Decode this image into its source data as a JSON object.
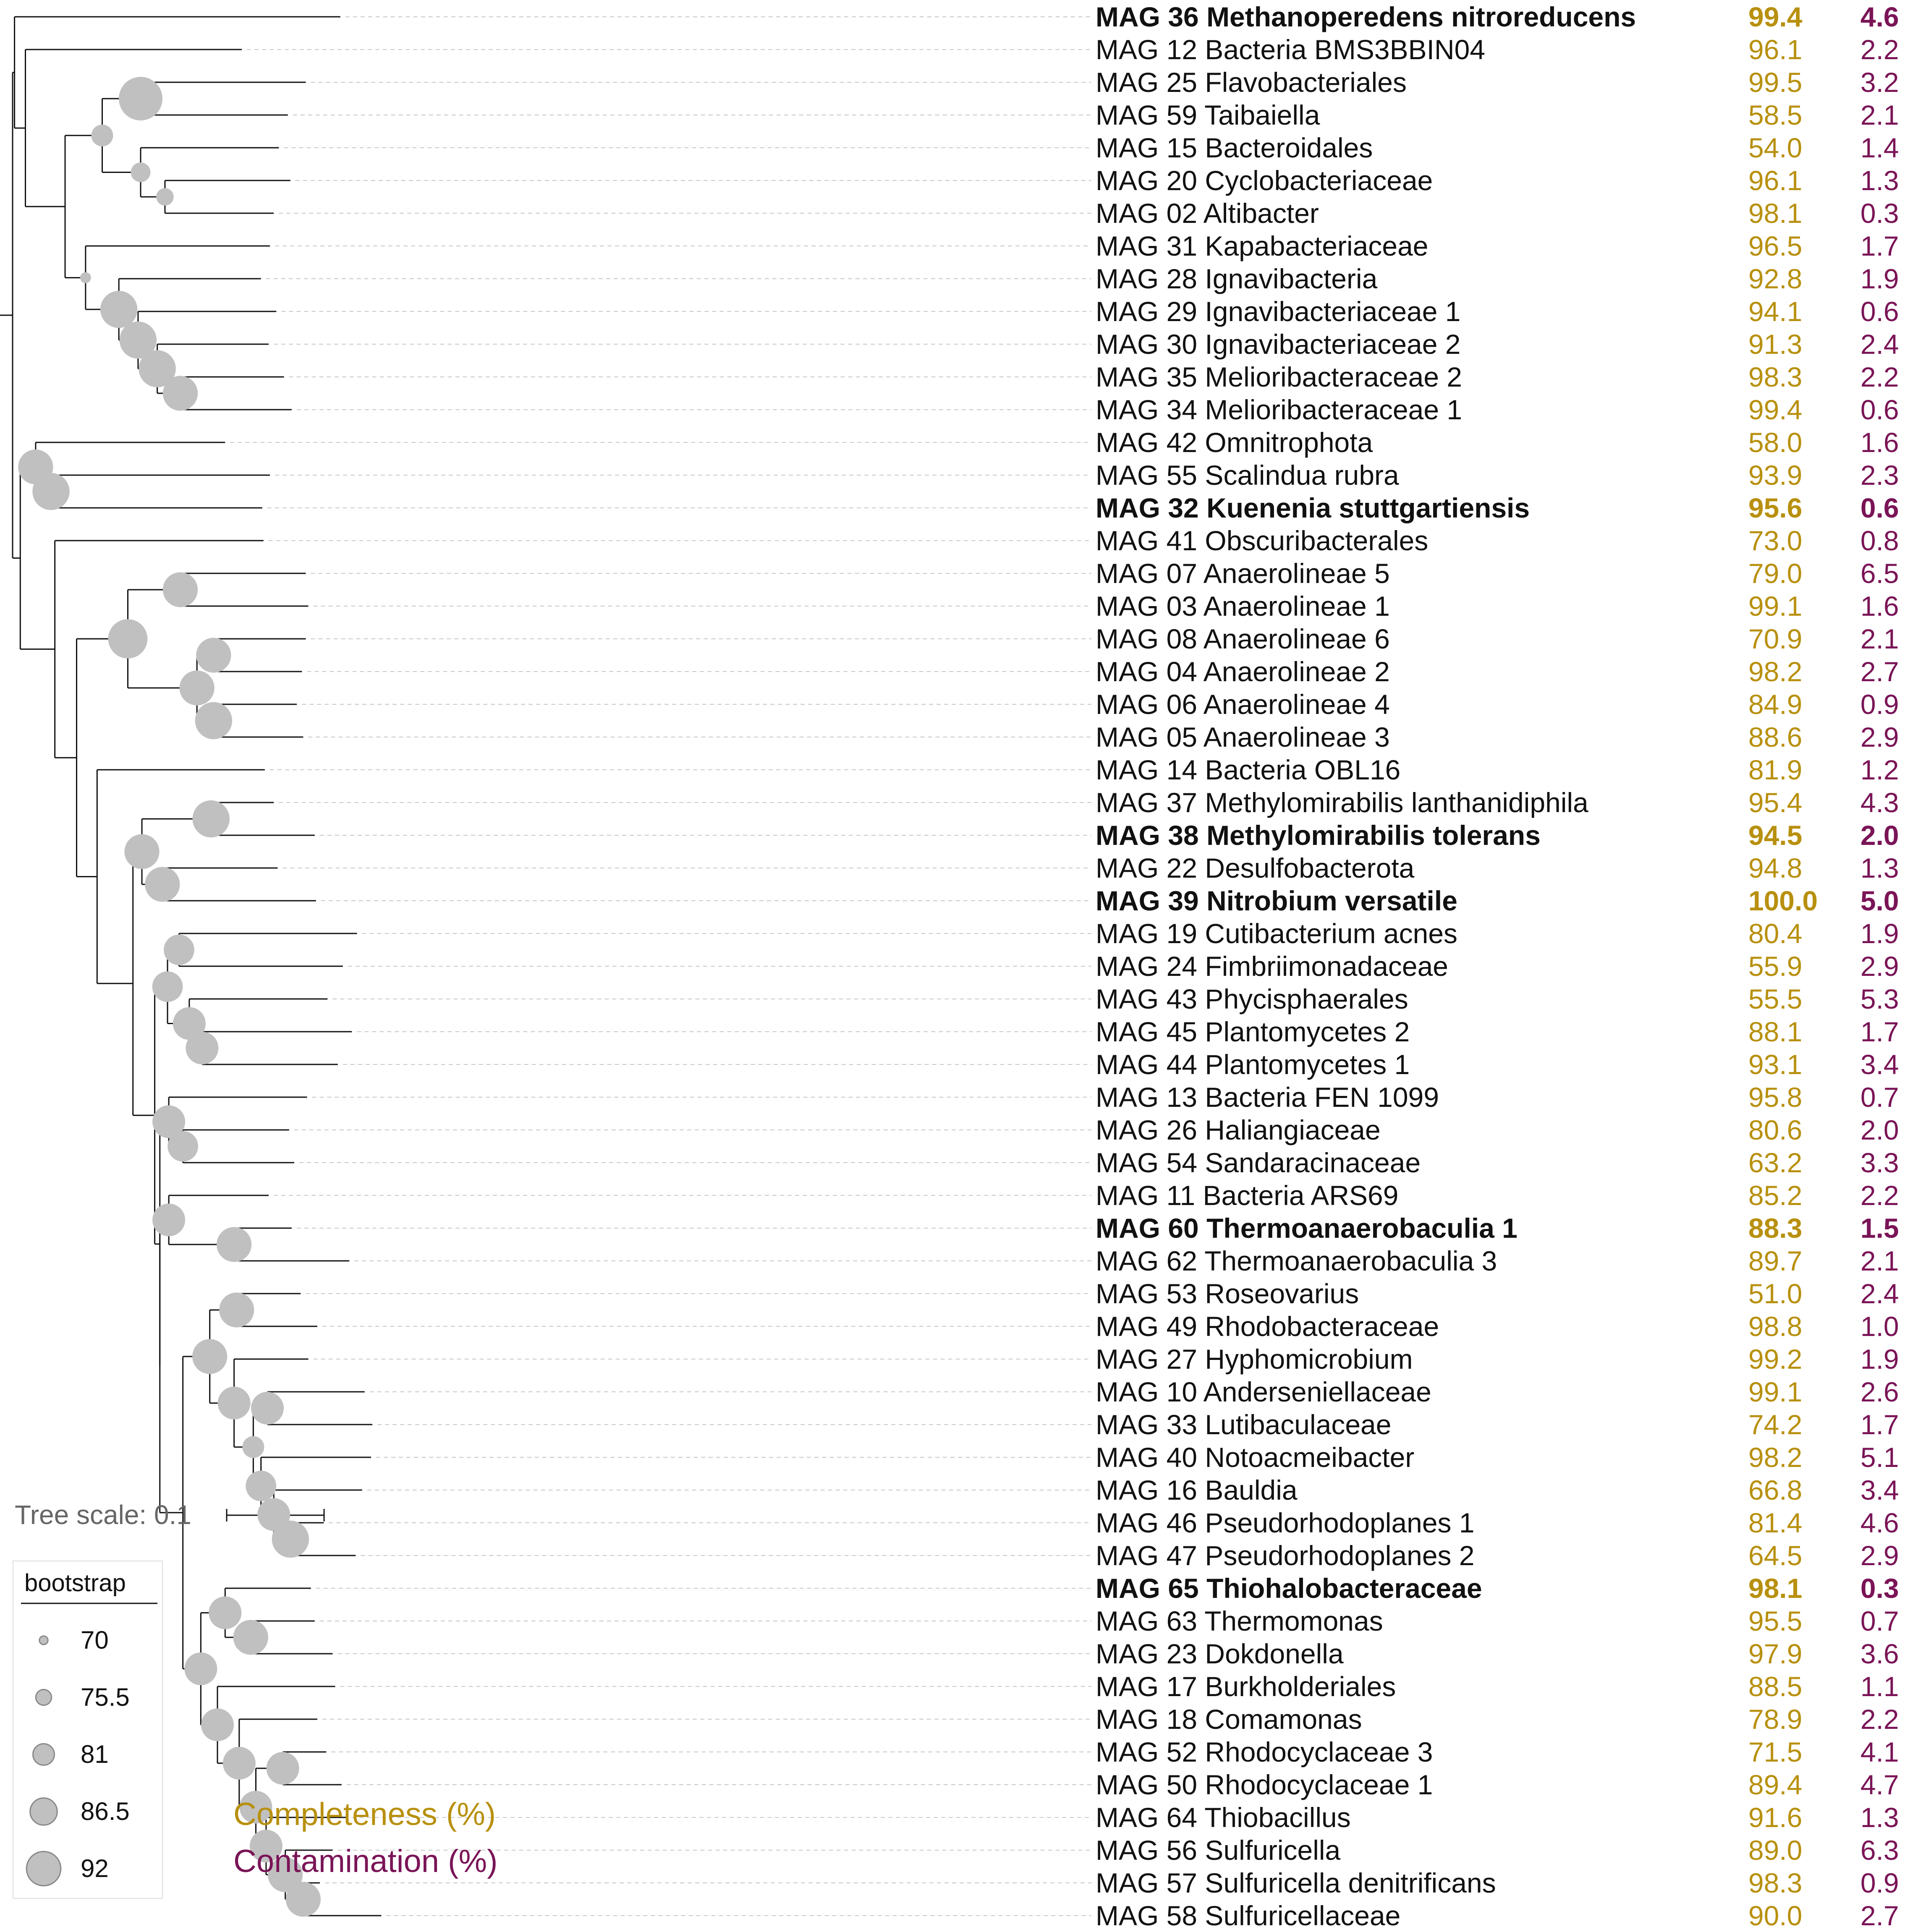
{
  "colors": {
    "completeness": "#b8900e",
    "contamination": "#7a1457",
    "bootstrap_fill": "#c0c0c0",
    "branch": "#111111"
  },
  "scale_bar": {
    "label": "Tree scale: 0.1"
  },
  "legend": {
    "title": "bootstrap",
    "items": [
      {
        "value": "70"
      },
      {
        "value": "75.5"
      },
      {
        "value": "81"
      },
      {
        "value": "86.5"
      },
      {
        "value": "92"
      }
    ]
  },
  "keys": {
    "completeness": "Completeness (%)",
    "contamination": "Contamination (%)"
  },
  "taxa": [
    {
      "label": "MAG 36 Methanoperedens nitroreducens",
      "completeness": "99.4",
      "contamination": "4.6",
      "bold": true
    },
    {
      "label": "MAG 12 Bacteria BMS3BBIN04",
      "completeness": "96.1",
      "contamination": "2.2",
      "bold": false
    },
    {
      "label": "MAG 25 Flavobacteriales",
      "completeness": "99.5",
      "contamination": "3.2",
      "bold": false
    },
    {
      "label": "MAG 59 Taibaiella",
      "completeness": "58.5",
      "contamination": "2.1",
      "bold": false
    },
    {
      "label": "MAG 15 Bacteroidales",
      "completeness": "54.0",
      "contamination": "1.4",
      "bold": false
    },
    {
      "label": "MAG 20 Cyclobacteriaceae",
      "completeness": "96.1",
      "contamination": "1.3",
      "bold": false
    },
    {
      "label": "MAG 02 Altibacter",
      "completeness": "98.1",
      "contamination": "0.3",
      "bold": false
    },
    {
      "label": "MAG 31 Kapabacteriaceae",
      "completeness": "96.5",
      "contamination": "1.7",
      "bold": false
    },
    {
      "label": "MAG 28 Ignavibacteria",
      "completeness": "92.8",
      "contamination": "1.9",
      "bold": false
    },
    {
      "label": "MAG 29 Ignavibacteriaceae 1",
      "completeness": "94.1",
      "contamination": "0.6",
      "bold": false
    },
    {
      "label": "MAG 30 Ignavibacteriaceae 2",
      "completeness": "91.3",
      "contamination": "2.4",
      "bold": false
    },
    {
      "label": "MAG 35 Melioribacteraceae 2",
      "completeness": "98.3",
      "contamination": "2.2",
      "bold": false
    },
    {
      "label": "MAG 34 Melioribacteraceae 1",
      "completeness": "99.4",
      "contamination": "0.6",
      "bold": false
    },
    {
      "label": "MAG 42 Omnitrophota",
      "completeness": "58.0",
      "contamination": "1.6",
      "bold": false
    },
    {
      "label": "MAG 55 Scalindua rubra",
      "completeness": "93.9",
      "contamination": "2.3",
      "bold": false
    },
    {
      "label": "MAG 32 Kuenenia stuttgartiensis",
      "completeness": "95.6",
      "contamination": "0.6",
      "bold": true
    },
    {
      "label": "MAG 41 Obscuribacterales",
      "completeness": "73.0",
      "contamination": "0.8",
      "bold": false
    },
    {
      "label": "MAG 07 Anaerolineae 5",
      "completeness": "79.0",
      "contamination": "6.5",
      "bold": false
    },
    {
      "label": "MAG 03 Anaerolineae 1",
      "completeness": "99.1",
      "contamination": "1.6",
      "bold": false
    },
    {
      "label": "MAG 08 Anaerolineae 6",
      "completeness": "70.9",
      "contamination": "2.1",
      "bold": false
    },
    {
      "label": "MAG 04 Anaerolineae 2",
      "completeness": "98.2",
      "contamination": "2.7",
      "bold": false
    },
    {
      "label": "MAG 06 Anaerolineae 4",
      "completeness": "84.9",
      "contamination": "0.9",
      "bold": false
    },
    {
      "label": "MAG 05 Anaerolineae 3",
      "completeness": "88.6",
      "contamination": "2.9",
      "bold": false
    },
    {
      "label": "MAG 14 Bacteria OBL16",
      "completeness": "81.9",
      "contamination": "1.2",
      "bold": false
    },
    {
      "label": "MAG 37 Methylomirabilis lanthanidiphila",
      "completeness": "95.4",
      "contamination": "4.3",
      "bold": false
    },
    {
      "label": "MAG 38 Methylomirabilis tolerans",
      "completeness": "94.5",
      "contamination": "2.0",
      "bold": true
    },
    {
      "label": "MAG 22 Desulfobacterota",
      "completeness": "94.8",
      "contamination": "1.3",
      "bold": false
    },
    {
      "label": "MAG 39 Nitrobium versatile",
      "completeness": "100.0",
      "contamination": "5.0",
      "bold": true
    },
    {
      "label": "MAG 19 Cutibacterium acnes",
      "completeness": "80.4",
      "contamination": "1.9",
      "bold": false
    },
    {
      "label": "MAG 24 Fimbriimonadaceae",
      "completeness": "55.9",
      "contamination": "2.9",
      "bold": false
    },
    {
      "label": "MAG 43 Phycisphaerales",
      "completeness": "55.5",
      "contamination": "5.3",
      "bold": false
    },
    {
      "label": "MAG 45 Plantomycetes 2",
      "completeness": "88.1",
      "contamination": "1.7",
      "bold": false
    },
    {
      "label": "MAG 44 Plantomycetes 1",
      "completeness": "93.1",
      "contamination": "3.4",
      "bold": false
    },
    {
      "label": "MAG 13 Bacteria FEN 1099",
      "completeness": "95.8",
      "contamination": "0.7",
      "bold": false
    },
    {
      "label": "MAG 26 Haliangiaceae",
      "completeness": "80.6",
      "contamination": "2.0",
      "bold": false
    },
    {
      "label": "MAG 54 Sandaracinaceae",
      "completeness": "63.2",
      "contamination": "3.3",
      "bold": false
    },
    {
      "label": "MAG 11 Bacteria ARS69",
      "completeness": "85.2",
      "contamination": "2.2",
      "bold": false
    },
    {
      "label": "MAG 60 Thermoanaerobaculia 1",
      "completeness": "88.3",
      "contamination": "1.5",
      "bold": true
    },
    {
      "label": "MAG 62 Thermoanaerobaculia 3",
      "completeness": "89.7",
      "contamination": "2.1",
      "bold": false
    },
    {
      "label": "MAG 53 Roseovarius",
      "completeness": "51.0",
      "contamination": "2.4",
      "bold": false
    },
    {
      "label": "MAG 49 Rhodobacteraceae",
      "completeness": "98.8",
      "contamination": "1.0",
      "bold": false
    },
    {
      "label": "MAG 27 Hyphomicrobium",
      "completeness": "99.2",
      "contamination": "1.9",
      "bold": false
    },
    {
      "label": "MAG 10 Anderseniellaceae",
      "completeness": "99.1",
      "contamination": "2.6",
      "bold": false
    },
    {
      "label": "MAG 33 Lutibaculaceae",
      "completeness": "74.2",
      "contamination": "1.7",
      "bold": false
    },
    {
      "label": "MAG 40 Notoacmeibacter",
      "completeness": "98.2",
      "contamination": "5.1",
      "bold": false
    },
    {
      "label": "MAG 16 Bauldia",
      "completeness": "66.8",
      "contamination": "3.4",
      "bold": false
    },
    {
      "label": "MAG 46 Pseudorhodoplanes 1",
      "completeness": "81.4",
      "contamination": "4.6",
      "bold": false
    },
    {
      "label": "MAG 47 Pseudorhodoplanes 2",
      "completeness": "64.5",
      "contamination": "2.9",
      "bold": false
    },
    {
      "label": "MAG 65 Thiohalobacteraceae",
      "completeness": "98.1",
      "contamination": "0.3",
      "bold": true
    },
    {
      "label": "MAG 63 Thermomonas",
      "completeness": "95.5",
      "contamination": "0.7",
      "bold": false
    },
    {
      "label": "MAG 23 Dokdonella",
      "completeness": "97.9",
      "contamination": "3.6",
      "bold": false
    },
    {
      "label": "MAG 17 Burkholderiales",
      "completeness": "88.5",
      "contamination": "1.1",
      "bold": false
    },
    {
      "label": "MAG 18 Comamonas",
      "completeness": "78.9",
      "contamination": "2.2",
      "bold": false
    },
    {
      "label": "MAG 52 Rhodocyclaceae 3",
      "completeness": "71.5",
      "contamination": "4.1",
      "bold": false
    },
    {
      "label": "MAG 50 Rhodocyclaceae 1",
      "completeness": "89.4",
      "contamination": "4.7",
      "bold": false
    },
    {
      "label": "MAG 64 Thiobacillus",
      "completeness": "91.6",
      "contamination": "1.3",
      "bold": false
    },
    {
      "label": "MAG 56 Sulfuricella",
      "completeness": "89.0",
      "contamination": "6.3",
      "bold": false
    },
    {
      "label": "MAG 57 Sulfuricella denitrificans",
      "completeness": "98.3",
      "contamination": "0.9",
      "bold": false
    },
    {
      "label": "MAG 58 Sulfuricellaceae",
      "completeness": "90.0",
      "contamination": "2.7",
      "bold": false
    }
  ]
}
